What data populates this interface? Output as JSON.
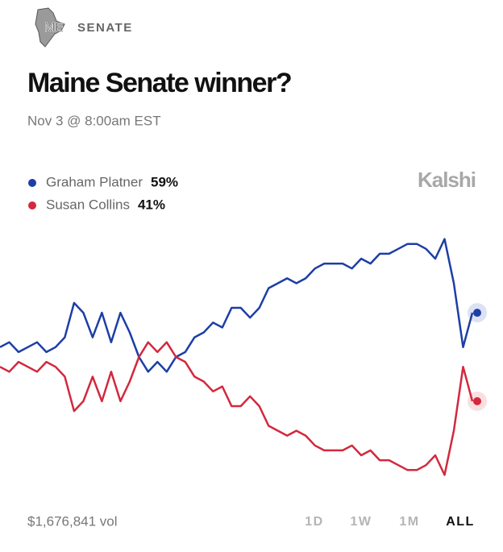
{
  "header": {
    "badge": "ME",
    "section": "SENATE"
  },
  "brand": "Kalshi",
  "volume": "$1,676,841 vol",
  "ranges": [
    "1D",
    "1W",
    "1M",
    "ALL"
  ],
  "chart_data": {
    "type": "line",
    "title": "Maine Senate winner?",
    "subtitle": "Nov 3 @ 8:00am EST",
    "categories": [
      null,
      null,
      null,
      null,
      null,
      null,
      null,
      null,
      null,
      null,
      null,
      null,
      null,
      null,
      null,
      null,
      null,
      null,
      null,
      null,
      null,
      null,
      null,
      null,
      null,
      null,
      null,
      null,
      null,
      null,
      null,
      null,
      null,
      null,
      null,
      null,
      null,
      null,
      null,
      null,
      null,
      null,
      null,
      null,
      null,
      null,
      null,
      null,
      null,
      null,
      null,
      null
    ],
    "ylim": [
      20,
      80
    ],
    "series": [
      {
        "name": "Graham Platner",
        "color": "#1d3ea6",
        "current": 59,
        "current_label": "59%",
        "values": [
          52,
          53,
          51,
          52,
          53,
          51,
          52,
          54,
          61,
          59,
          54,
          59,
          53,
          59,
          55,
          50,
          47,
          49,
          47,
          50,
          51,
          54,
          55,
          57,
          56,
          60,
          60,
          58,
          60,
          64,
          65,
          66,
          65,
          66,
          68,
          69,
          69,
          69,
          68,
          70,
          69,
          71,
          71,
          72,
          73,
          73,
          72,
          70,
          74,
          65,
          52,
          59
        ]
      },
      {
        "name": "Susan Collins",
        "color": "#d3283d",
        "current": 41,
        "current_label": "41%",
        "values": [
          48,
          47,
          49,
          48,
          47,
          49,
          48,
          46,
          39,
          41,
          46,
          41,
          47,
          41,
          45,
          50,
          53,
          51,
          53,
          50,
          49,
          46,
          45,
          43,
          44,
          40,
          40,
          42,
          40,
          36,
          35,
          34,
          35,
          34,
          32,
          31,
          31,
          31,
          32,
          30,
          31,
          29,
          29,
          28,
          27,
          27,
          28,
          30,
          26,
          35,
          48,
          41
        ]
      }
    ]
  }
}
